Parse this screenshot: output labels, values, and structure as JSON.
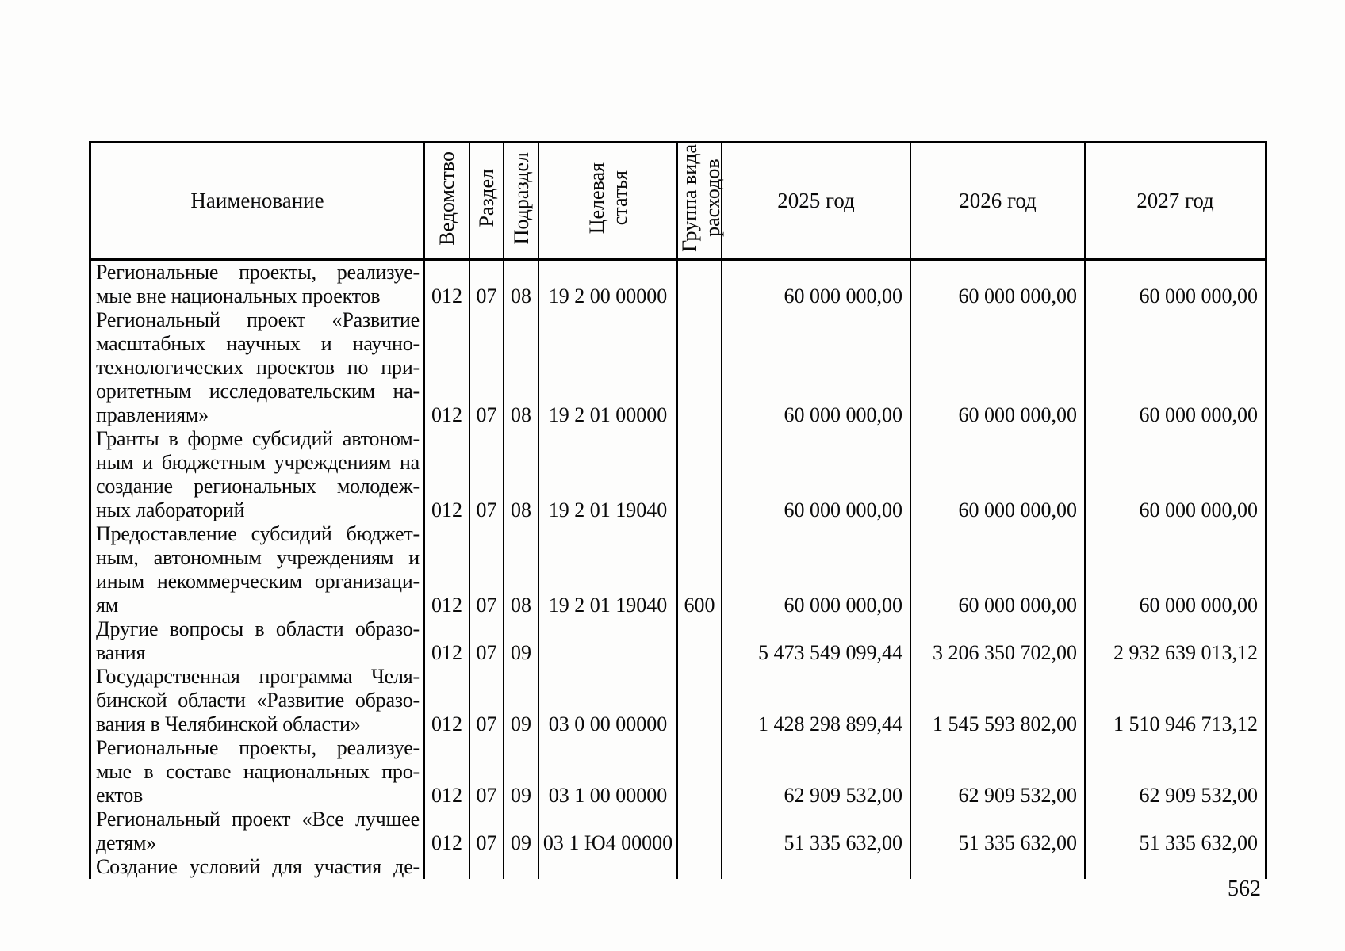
{
  "page": {
    "number": "562"
  },
  "table": {
    "header": {
      "name": "Наименование",
      "vedomstvo": "Ведомство",
      "razdel": "Раздел",
      "podrazdel": "Подраздел",
      "target": "Целевая\nстатья",
      "group": "Группа вида\nрасходов",
      "y2025": "2025 год",
      "y2026": "2026 год",
      "y2027": "2027 год"
    },
    "rows": [
      {
        "lines": [
          "Региональные проекты, реализуе-",
          "мые вне национальных проектов"
        ],
        "ved": "012",
        "razd": "07",
        "podr": "08",
        "target": "19 2 00 00000",
        "group": "",
        "v2025": "60 000 000,00",
        "v2026": "60 000 000,00",
        "v2027": "60 000 000,00"
      },
      {
        "lines": [
          "Региональный проект «Развитие",
          "масштабных научных и научно-",
          "технологических проектов по при-",
          "оритетным исследовательским на-",
          "правлениям»"
        ],
        "ved": "012",
        "razd": "07",
        "podr": "08",
        "target": "19 2 01 00000",
        "group": "",
        "v2025": "60 000 000,00",
        "v2026": "60 000 000,00",
        "v2027": "60 000 000,00"
      },
      {
        "lines": [
          "Гранты в форме субсидий автоном-",
          "ным и бюджетным учреждениям на",
          "создание региональных молодеж-",
          "ных лабораторий"
        ],
        "ved": "012",
        "razd": "07",
        "podr": "08",
        "target": "19 2 01 19040",
        "group": "",
        "v2025": "60 000 000,00",
        "v2026": "60 000 000,00",
        "v2027": "60 000 000,00"
      },
      {
        "lines": [
          "Предоставление субсидий бюджет-",
          "ным, автономным учреждениям и",
          "иным некоммерческим организаци-",
          "ям"
        ],
        "ved": "012",
        "razd": "07",
        "podr": "08",
        "target": "19 2 01 19040",
        "group": "600",
        "v2025": "60 000 000,00",
        "v2026": "60 000 000,00",
        "v2027": "60 000 000,00"
      },
      {
        "lines": [
          "Другие вопросы в области образо-",
          "вания"
        ],
        "ved": "012",
        "razd": "07",
        "podr": "09",
        "target": "",
        "group": "",
        "v2025": "5 473 549 099,44",
        "v2026": "3 206 350 702,00",
        "v2027": "2 932 639 013,12"
      },
      {
        "lines": [
          "Государственная программа Челя-",
          "бинской области «Развитие образо-",
          "вания в Челябинской области»"
        ],
        "ved": "012",
        "razd": "07",
        "podr": "09",
        "target": "03 0 00 00000",
        "group": "",
        "v2025": "1 428 298 899,44",
        "v2026": "1 545 593 802,00",
        "v2027": "1 510 946 713,12"
      },
      {
        "lines": [
          "Региональные проекты, реализуе-",
          "мые в составе национальных про-",
          "ектов"
        ],
        "ved": "012",
        "razd": "07",
        "podr": "09",
        "target": "03 1 00 00000",
        "group": "",
        "v2025": "62 909 532,00",
        "v2026": "62 909 532,00",
        "v2027": "62 909 532,00"
      },
      {
        "lines": [
          "Региональный проект «Все лучшее",
          "детям»"
        ],
        "ved": "012",
        "razd": "07",
        "podr": "09",
        "target": "03 1 Ю4 00000",
        "group": "",
        "v2025": "51 335 632,00",
        "v2026": "51 335 632,00",
        "v2027": "51 335 632,00"
      },
      {
        "lines": [
          "Создание условий для участия де-"
        ],
        "justify_all": true,
        "ved": "",
        "razd": "",
        "podr": "",
        "target": "",
        "group": "",
        "v2025": "",
        "v2026": "",
        "v2027": ""
      }
    ]
  }
}
